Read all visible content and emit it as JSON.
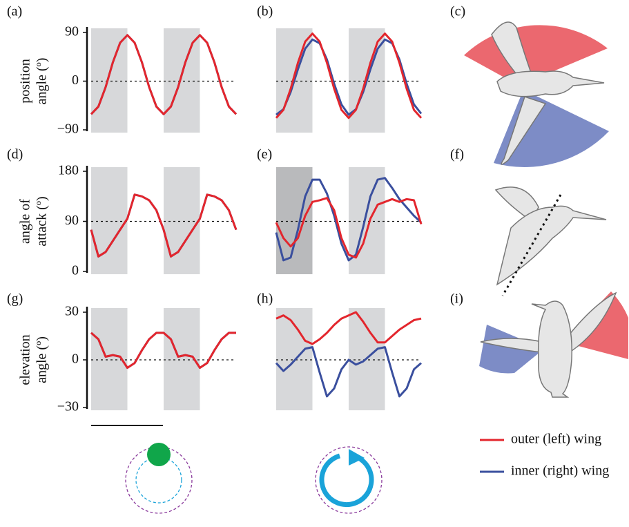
{
  "chart_data": [
    {
      "type": "line",
      "label": "(a)",
      "ylabel": [
        "position",
        "angle  (º)"
      ],
      "x": [
        0,
        0.1,
        0.2,
        0.3,
        0.4,
        0.5,
        0.6,
        0.7,
        0.8,
        0.9,
        1,
        1.1,
        1.2,
        1.3,
        1.4,
        1.5,
        1.6,
        1.7,
        1.8,
        1.9,
        2
      ],
      "xlim": [
        0,
        2
      ],
      "ylim": [
        -90,
        90
      ],
      "yticks": [
        {
          "value": -90,
          "label": "−90"
        },
        0,
        90
      ],
      "shaded": [
        [
          0,
          0.5
        ],
        [
          1,
          1.5
        ]
      ],
      "shade_colors": [
        "#d7d8da",
        "#d7d8da"
      ],
      "reference_line": 0,
      "series": [
        {
          "name": "inner (right) wing",
          "color": "#3a4f9e",
          "values": [
            -61,
            -47,
            -11,
            35,
            71,
            85,
            71,
            35,
            -11,
            -47,
            -61,
            -47,
            -11,
            35,
            71,
            85,
            71,
            35,
            -11,
            -47,
            -61
          ]
        },
        {
          "name": "outer (left) wing",
          "color": "#e3262d",
          "values": [
            -61,
            -47,
            -11,
            35,
            71,
            85,
            71,
            35,
            -11,
            -47,
            -61,
            -47,
            -11,
            35,
            71,
            85,
            71,
            35,
            -11,
            -47,
            -61
          ]
        }
      ]
    },
    {
      "type": "line",
      "label": "(b)",
      "x": [
        0,
        0.1,
        0.2,
        0.3,
        0.4,
        0.5,
        0.6,
        0.7,
        0.8,
        0.9,
        1,
        1.1,
        1.2,
        1.3,
        1.4,
        1.5,
        1.6,
        1.7,
        1.8,
        1.9,
        2
      ],
      "xlim": [
        0,
        2
      ],
      "ylim": [
        -90,
        90
      ],
      "shaded": [
        [
          0,
          0.5
        ],
        [
          1,
          1.5
        ]
      ],
      "shade_colors": [
        "#d7d8da",
        "#d7d8da"
      ],
      "reference_line": 0,
      "series": [
        {
          "name": "inner (right) wing",
          "color": "#3a4f9e",
          "values": [
            -62,
            -52,
            -20,
            22,
            60,
            77,
            70,
            40,
            -5,
            -43,
            -62,
            -52,
            -20,
            22,
            60,
            77,
            70,
            40,
            -5,
            -43,
            -60
          ]
        },
        {
          "name": "outer (left) wing",
          "color": "#e3262d",
          "values": [
            -68,
            -53,
            -14,
            34,
            73,
            88,
            73,
            34,
            -14,
            -53,
            -68,
            -53,
            -14,
            34,
            73,
            88,
            73,
            34,
            -14,
            -53,
            -68
          ]
        }
      ]
    },
    {
      "type": "line",
      "label": "(d)",
      "ylabel": [
        "angle of",
        "attack  (º)"
      ],
      "x": [
        0,
        0.1,
        0.2,
        0.3,
        0.4,
        0.5,
        0.6,
        0.7,
        0.8,
        0.9,
        1,
        1.1,
        1.2,
        1.3,
        1.4,
        1.5,
        1.6,
        1.7,
        1.8,
        1.9,
        2
      ],
      "xlim": [
        0,
        2
      ],
      "ylim": [
        0,
        180
      ],
      "yticks": [
        0,
        90,
        180
      ],
      "shaded": [
        [
          0,
          0.5
        ],
        [
          1,
          1.5
        ]
      ],
      "shade_colors": [
        "#d7d8da",
        "#d7d8da"
      ],
      "reference_line": 90,
      "series": [
        {
          "name": "inner (right) wing",
          "color": "#3a4f9e",
          "values": [
            75,
            27,
            35,
            55,
            75,
            95,
            138,
            135,
            128,
            110,
            75,
            27,
            35,
            55,
            75,
            95,
            138,
            135,
            128,
            110,
            75
          ]
        },
        {
          "name": "outer (left) wing",
          "color": "#e3262d",
          "values": [
            75,
            27,
            35,
            55,
            75,
            95,
            138,
            135,
            128,
            110,
            75,
            27,
            35,
            55,
            75,
            95,
            138,
            135,
            128,
            110,
            75
          ]
        }
      ]
    },
    {
      "type": "line",
      "label": "(e)",
      "x": [
        0,
        0.1,
        0.2,
        0.3,
        0.4,
        0.5,
        0.6,
        0.7,
        0.8,
        0.9,
        1,
        1.1,
        1.2,
        1.3,
        1.4,
        1.5,
        1.6,
        1.7,
        1.8,
        1.9,
        2
      ],
      "xlim": [
        0,
        2
      ],
      "ylim": [
        0,
        180
      ],
      "shaded": [
        [
          0,
          0.5
        ],
        [
          1,
          1.5
        ]
      ],
      "shade_colors": [
        "#b9babc",
        "#d7d8da"
      ],
      "reference_line": 90,
      "series": [
        {
          "name": "inner (right) wing",
          "color": "#3a4f9e",
          "values": [
            70,
            20,
            25,
            75,
            135,
            165,
            165,
            140,
            100,
            50,
            20,
            30,
            80,
            135,
            165,
            168,
            150,
            130,
            115,
            100,
            88
          ]
        },
        {
          "name": "outer (left) wing",
          "color": "#e3262d",
          "values": [
            88,
            60,
            45,
            60,
            100,
            125,
            128,
            132,
            110,
            60,
            30,
            25,
            50,
            95,
            120,
            125,
            130,
            125,
            130,
            128,
            85
          ]
        }
      ]
    },
    {
      "type": "line",
      "label": "(g)",
      "ylabel": [
        "elevation",
        "angle  (º)"
      ],
      "x": [
        0,
        0.1,
        0.2,
        0.3,
        0.4,
        0.5,
        0.6,
        0.7,
        0.8,
        0.9,
        1,
        1.1,
        1.2,
        1.3,
        1.4,
        1.5,
        1.6,
        1.7,
        1.8,
        1.9,
        2
      ],
      "xlim": [
        0,
        2
      ],
      "ylim": [
        -30,
        30
      ],
      "yticks": [
        {
          "value": -30,
          "label": "−30"
        },
        0,
        30
      ],
      "shaded": [
        [
          0,
          0.5
        ],
        [
          1,
          1.5
        ]
      ],
      "shade_colors": [
        "#d7d8da",
        "#d7d8da"
      ],
      "reference_line": 0,
      "series": [
        {
          "name": "inner (right) wing",
          "color": "#3a4f9e",
          "values": [
            17,
            13,
            2,
            3,
            2,
            -5,
            -2,
            6,
            13,
            17,
            17,
            13,
            2,
            3,
            2,
            -5,
            -2,
            6,
            13,
            17,
            17
          ]
        },
        {
          "name": "outer (left) wing",
          "color": "#e3262d",
          "values": [
            17,
            13,
            2,
            3,
            2,
            -5,
            -2,
            6,
            13,
            17,
            17,
            13,
            2,
            3,
            2,
            -5,
            -2,
            6,
            13,
            17,
            17
          ]
        }
      ]
    },
    {
      "type": "line",
      "label": "(h)",
      "x": [
        0,
        0.1,
        0.2,
        0.3,
        0.4,
        0.5,
        0.6,
        0.7,
        0.8,
        0.9,
        1,
        1.1,
        1.2,
        1.3,
        1.4,
        1.5,
        1.6,
        1.7,
        1.8,
        1.9,
        2
      ],
      "xlim": [
        0,
        2
      ],
      "ylim": [
        -30,
        30
      ],
      "shaded": [
        [
          0,
          0.5
        ],
        [
          1,
          1.5
        ]
      ],
      "shade_colors": [
        "#d7d8da",
        "#d7d8da"
      ],
      "reference_line": 0,
      "series": [
        {
          "name": "inner (right) wing",
          "color": "#3a4f9e",
          "values": [
            -2,
            -7,
            -3,
            2,
            7,
            8,
            -8,
            -23,
            -18,
            -6,
            0,
            -3,
            -1,
            3,
            7,
            8,
            -8,
            -23,
            -18,
            -6,
            -2
          ]
        },
        {
          "name": "outer (left) wing",
          "color": "#e3262d",
          "values": [
            26,
            28,
            25,
            19,
            12,
            10,
            13,
            17,
            22,
            26,
            28,
            30,
            24,
            17,
            11,
            11,
            15,
            19,
            22,
            25,
            26
          ]
        }
      ]
    }
  ],
  "illustrations": [
    {
      "label": "(c)"
    },
    {
      "label": "(f)"
    },
    {
      "label": "(i)"
    }
  ]
}
